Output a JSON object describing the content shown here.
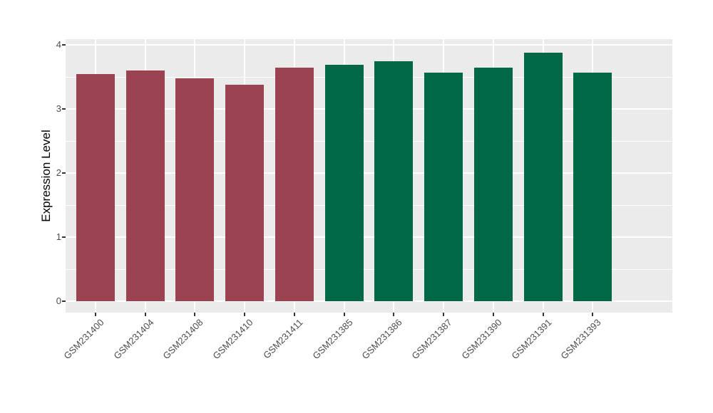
{
  "chart_data": {
    "type": "bar",
    "title": "",
    "xlabel": "",
    "ylabel": "Expression Level",
    "categories": [
      "GSM231400",
      "GSM231404",
      "GSM231408",
      "GSM231410",
      "GSM231411",
      "GSM231385",
      "GSM231386",
      "GSM231387",
      "GSM231390",
      "GSM231391",
      "GSM231393"
    ],
    "values": [
      3.54,
      3.6,
      3.48,
      3.38,
      3.64,
      3.69,
      3.74,
      3.57,
      3.65,
      3.88,
      3.57
    ],
    "bar_colors": [
      "#9C4352",
      "#9C4352",
      "#9C4352",
      "#9C4352",
      "#9C4352",
      "#006747",
      "#006747",
      "#006747",
      "#006747",
      "#006747",
      "#006747"
    ],
    "group_colors": {
      "maroon_group": "#9C4352",
      "green_group": "#006747"
    },
    "y_ticks": [
      0,
      1,
      2,
      3,
      4
    ],
    "y_minor_gridlines": [
      0.5,
      1.5,
      2.5,
      3.5
    ],
    "ylim": [
      -0.17,
      4.09
    ],
    "legend": "none",
    "grid": "white major and minor gridlines on grey panel",
    "panel_background": "#EBEBEB",
    "gridline_color": "#FFFFFF",
    "axis_text_color": "#4D4D4D",
    "tick_mark_color": "#333333",
    "x_label_rotation_deg": 45
  }
}
